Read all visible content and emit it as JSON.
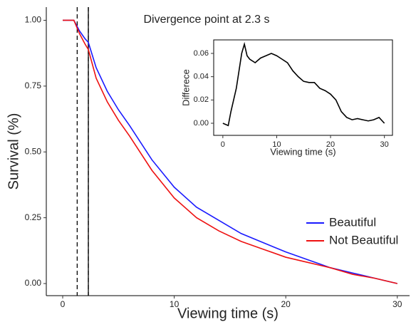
{
  "chart_data": [
    {
      "type": "line",
      "xlabel": "Viewing time (s)",
      "ylabel": "Survival (%)",
      "annotation": "Divergence point at 2.3 s",
      "dashed_vlines": [
        1.3,
        2.3
      ],
      "solid_vline": 2.3,
      "x": [
        0,
        1,
        1.5,
        2,
        2.3,
        3,
        4,
        5,
        6,
        8,
        10,
        12,
        14,
        16,
        18,
        20,
        22,
        23,
        24,
        26,
        28,
        30
      ],
      "series": [
        {
          "name": "Beautiful",
          "color": "#1a1aff",
          "values": [
            1.0,
            1.0,
            0.96,
            0.93,
            0.916,
            0.82,
            0.73,
            0.66,
            0.6,
            0.47,
            0.366,
            0.29,
            0.24,
            0.19,
            0.155,
            0.12,
            0.09,
            0.075,
            0.06,
            0.04,
            0.02,
            0.0
          ]
        },
        {
          "name": "Not Beautiful",
          "color": "#ee1111",
          "values": [
            1.0,
            1.0,
            0.95,
            0.91,
            0.889,
            0.78,
            0.69,
            0.62,
            0.56,
            0.43,
            0.325,
            0.25,
            0.2,
            0.16,
            0.13,
            0.1,
            0.08,
            0.07,
            0.06,
            0.035,
            0.02,
            0.0
          ]
        }
      ],
      "xlim": [
        -1.47,
        31.1
      ],
      "ylim": [
        -0.046,
        1.05
      ],
      "xticks": [
        0,
        10,
        20,
        30
      ],
      "yticks": [
        {
          "value": 0,
          "label": "0.00"
        },
        {
          "value": 0.25,
          "label": "0.25"
        },
        {
          "value": 0.5,
          "label": "0.50"
        },
        {
          "value": 0.75,
          "label": "0.75"
        },
        {
          "value": 1,
          "label": "1.00"
        }
      ],
      "legend": "bottom-right"
    },
    {
      "type": "line",
      "xlabel": "Viewing time (s)",
      "ylabel": "Differece",
      "color": "#000000",
      "x": [
        0,
        1,
        1.5,
        2,
        2.5,
        3,
        3.5,
        4,
        4.5,
        5,
        6,
        7,
        8,
        9,
        10,
        11,
        12,
        13,
        14,
        15,
        16,
        17,
        18,
        19,
        20,
        21,
        22,
        23,
        24,
        25,
        26,
        27,
        28,
        29,
        30
      ],
      "values": [
        0,
        -0.002,
        0.01,
        0.02,
        0.03,
        0.045,
        0.06,
        0.068,
        0.058,
        0.055,
        0.052,
        0.056,
        0.058,
        0.06,
        0.058,
        0.055,
        0.052,
        0.045,
        0.04,
        0.036,
        0.035,
        0.035,
        0.03,
        0.028,
        0.025,
        0.02,
        0.01,
        0.005,
        0.003,
        0.004,
        0.003,
        0.002,
        0.003,
        0.005,
        0
      ],
      "xlim": [
        -1.7,
        31.5
      ],
      "ylim": [
        -0.0104,
        0.0716
      ],
      "xticks": [
        0,
        10,
        20,
        30
      ],
      "yticks": [
        {
          "value": 0,
          "label": "0.00"
        },
        {
          "value": 0.02,
          "label": "0.02"
        },
        {
          "value": 0.04,
          "label": "0.04"
        },
        {
          "value": 0.06,
          "label": "0.06"
        }
      ]
    }
  ]
}
